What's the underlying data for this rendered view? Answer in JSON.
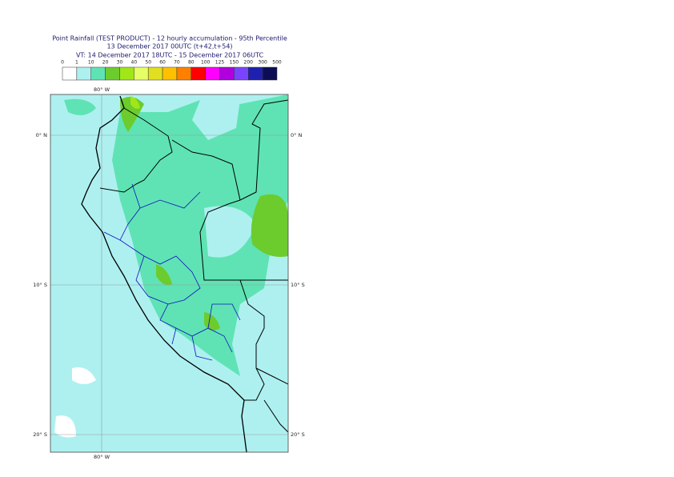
{
  "header": {
    "title": "Point Rainfall (TEST PRODUCT) - 12 hourly accumulation - 95th Percentile",
    "base": "13 December 2017 00UTC (t+42,t+54)",
    "valid": "VT: 14 December 2017 18UTC - 15 December 2017 06UTC"
  },
  "legend": {
    "thresholds": [
      0,
      1,
      10,
      20,
      30,
      40,
      50,
      60,
      70,
      80,
      100,
      125,
      150,
      200,
      300,
      500
    ],
    "colors": [
      "#ffffff",
      "#aef0f0",
      "#5fe3b4",
      "#6ccc2e",
      "#a0e619",
      "#e6ff66",
      "#e0e020",
      "#ffc000",
      "#ff8000",
      "#ff0000",
      "#ff00ff",
      "#b000e0",
      "#7a44ff",
      "#2020b0",
      "#0d0d55"
    ]
  },
  "map": {
    "lon_labels": [
      "80° W"
    ],
    "lat_labels": [
      "0° N",
      "10° S",
      "20° S"
    ]
  }
}
